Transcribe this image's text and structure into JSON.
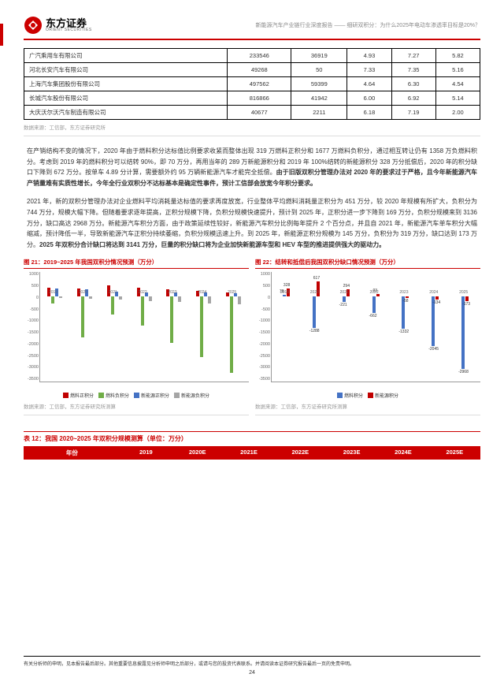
{
  "header": {
    "logo_cn": "东方证券",
    "logo_en": "ORIENT SECURITIES",
    "subtitle": "新能源汽车产业链行业深度报告 —— 细研双积分：为什么2025年电动车渗透率目标是20%？"
  },
  "table1": {
    "rows": [
      [
        "广汽乘用车有限公司",
        "233546",
        "36919",
        "4.93",
        "7.27",
        "5.82"
      ],
      [
        "河北长安汽车有限公司",
        "49268",
        "50",
        "7.33",
        "7.35",
        "5.16"
      ],
      [
        "上海汽车集团股份有限公司",
        "497562",
        "59399",
        "4.64",
        "6.30",
        "4.54"
      ],
      [
        "长城汽车股份有限公司",
        "816866",
        "41942",
        "6.00",
        "6.92",
        "5.14"
      ],
      [
        "大庆沃尔沃汽车制造有限公司",
        "40677",
        "2211",
        "6.18",
        "7.19",
        "2.00"
      ]
    ],
    "source": "数据来源：工信部，东方证券研究所"
  },
  "para1": {
    "text": "在产销结构不变的情况下，2020 年由于燃料积分达标值比例要求收紧而整体出现 319 万燃料正积分和 1677 万燃料负积分，通过相互转让仍有 1358 万负燃料积分。考虑到 2019 年的燃料积分可以结转 90%，即 70 万分，再用当年的 289 万新能源积分和 2019 年 100%结转的新能源积分 328 万分抵偿后，2020 年的积分缺口下降到 672 万分。按单车 4.89 分计算，需要额外约 95 万辆新能源汽车才能完全抵偿。",
    "bold": "由于旧版双积分管理办法对 2020 年的要求过于严格，且今年新能源汽车产销量难有实质性增长，今年全行业双积分不达标基本是确定性事件，预计工信部会放宽今年积分要求。"
  },
  "para2": {
    "text1": "2021 年，新的双积分管理办法对企业燃料平均消耗量达标值的要求再度放宽，行业整体平均燃料消耗量正积分为 451 万分，较 2020 年规模有所扩大，负积分为 744 万分，规模大幅下降。但随着要求逐年提高，正积分规模下降，负积分规模快速提升，预计到 2025 年，正积分进一步下降到 169 万分，负积分规模来到 3136 万分，缺口高达 2968 万分。新能源汽车积分方面，由于政策延续性较好，新能源汽车积分比例每年提升 2 个百分点，并且自 2021 年，新能源汽车单车积分大幅缩减，预计降低一半，导致新能源汽车正积分持续萎缩，负积分规模迅速上升。到 2025 年，新能源正积分规模为 145 万分，负积分为 319 万分，缺口达到 173 万分。",
    "bold": "2025 年双积分合计缺口将达到 3141 万分，巨量的积分缺口将为企业加快新能源车型和 HEV 车型的推进提供强大的驱动力。"
  },
  "chart1": {
    "title": "图 21：2019~2025 年我国双积分情况预测（万分）",
    "type": "bar",
    "ylim": [
      -3500,
      1000
    ],
    "ytick_step": 500,
    "categories": [
      "2019",
      "2020",
      "2021",
      "2022",
      "2023",
      "2024",
      "2025"
    ],
    "series": [
      {
        "name": "燃料正积分",
        "color": "#c00000",
        "values": [
          350,
          319,
          451,
          380,
          300,
          230,
          169
        ]
      },
      {
        "name": "燃料负积分",
        "color": "#70ad47",
        "values": [
          -270,
          -1677,
          -744,
          -1200,
          -1900,
          -2500,
          -3136
        ]
      },
      {
        "name": "新能源正积分",
        "color": "#4472c4",
        "values": [
          328,
          289,
          200,
          180,
          165,
          155,
          145
        ]
      },
      {
        "name": "新能源负积分",
        "color": "#a5a5a5",
        "values": [
          -50,
          -80,
          -120,
          -180,
          -230,
          -280,
          -319
        ]
      }
    ],
    "source": "数据来源：工信部，东方证券研究所测算"
  },
  "chart2": {
    "title": "图 22：结转和抵偿后我国双积分缺口情况预测（万分）",
    "type": "bar",
    "ylim": [
      -3500,
      1000
    ],
    "ytick_step": 500,
    "categories": [
      "2019",
      "2020",
      "2021",
      "2022",
      "2023",
      "2024",
      "2025"
    ],
    "series": [
      {
        "name": "燃料积分",
        "color": "#4472c4",
        "values": [
          78,
          -1288,
          -221,
          -662,
          -1332,
          -2045,
          -2968
        ],
        "labels": [
          "78",
          "-1288",
          "-221",
          "-662",
          "-1332",
          "-2045",
          "-2968"
        ]
      },
      {
        "name": "新能源积分",
        "color": "#c00000",
        "values": [
          328,
          617,
          294,
          93,
          -58,
          -134,
          -173
        ],
        "labels": [
          "328",
          "617",
          "294",
          "93",
          "-58",
          "-134",
          "-173"
        ]
      }
    ],
    "source": "数据来源：工信部，东方证券研究所测算"
  },
  "table2": {
    "title": "表 12：我国 2020~2025 年双积分规模测算（单位：万分）",
    "headers": [
      "年份",
      "2019",
      "2020E",
      "2021E",
      "2022E",
      "2023E",
      "2024E",
      "2025E"
    ]
  },
  "footer": {
    "disclaimer": "有关分析师的申明，见本报告最后部分。其他重要信息披露见分析师申明之后部分，或请与您的投资代表联系。并请阅读本证券研究报告最后一页的免责申明。",
    "page": "24"
  },
  "colors": {
    "brand_red": "#c00000",
    "green": "#70ad47",
    "blue": "#4472c4",
    "gray": "#a5a5a5"
  }
}
